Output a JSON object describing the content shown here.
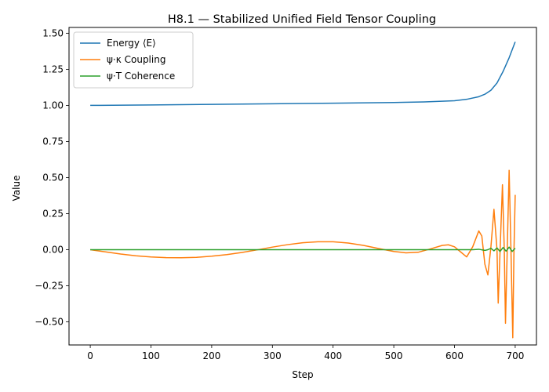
{
  "chart_data": {
    "type": "line",
    "title": "H8.1 — Stabilized Unified Field Tensor Coupling",
    "xlabel": "Step",
    "ylabel": "Value",
    "xlim": [
      -35,
      735
    ],
    "ylim": [
      -0.66,
      1.54
    ],
    "xticks": [
      0,
      100,
      200,
      300,
      400,
      500,
      600,
      700
    ],
    "xtick_labels": [
      "0",
      "100",
      "200",
      "300",
      "400",
      "500",
      "600",
      "700"
    ],
    "yticks": [
      -0.5,
      -0.25,
      0.0,
      0.25,
      0.5,
      0.75,
      1.0,
      1.25,
      1.5
    ],
    "ytick_labels": [
      "−0.50",
      "−0.25",
      "0.00",
      "0.25",
      "0.50",
      "0.75",
      "1.00",
      "1.25",
      "1.50"
    ],
    "grid": false,
    "legend_position": "top-left",
    "series": [
      {
        "name": "Energy ⟨E⟩",
        "color": "#1f77b4",
        "x": [
          0,
          100,
          200,
          300,
          400,
          500,
          550,
          600,
          620,
          640,
          650,
          660,
          670,
          680,
          690,
          700
        ],
        "values": [
          1.0,
          1.003,
          1.007,
          1.011,
          1.015,
          1.02,
          1.024,
          1.032,
          1.042,
          1.06,
          1.077,
          1.105,
          1.155,
          1.235,
          1.33,
          1.44
        ]
      },
      {
        "name": "ψ·κ Coupling",
        "color": "#ff7f0e",
        "x": [
          0,
          25,
          50,
          75,
          100,
          125,
          150,
          175,
          200,
          225,
          250,
          275,
          300,
          325,
          350,
          375,
          400,
          425,
          450,
          475,
          500,
          520,
          540,
          560,
          580,
          590,
          600,
          610,
          620,
          630,
          640,
          645,
          650,
          655,
          660,
          665,
          670,
          672,
          676,
          679,
          682,
          684,
          688,
          690,
          693,
          696,
          698,
          700
        ],
        "values": [
          0.0,
          -0.015,
          -0.03,
          -0.042,
          -0.05,
          -0.055,
          -0.056,
          -0.053,
          -0.045,
          -0.034,
          -0.019,
          -0.001,
          0.018,
          0.035,
          0.048,
          0.055,
          0.055,
          0.046,
          0.03,
          0.008,
          -0.012,
          -0.022,
          -0.018,
          0.005,
          0.03,
          0.034,
          0.02,
          -0.015,
          -0.05,
          0.02,
          0.13,
          0.095,
          -0.1,
          -0.175,
          0.02,
          0.28,
          0.0,
          -0.37,
          0.1,
          0.45,
          0.0,
          -0.51,
          0.2,
          0.55,
          0.0,
          -0.61,
          0.0,
          0.38
        ]
      },
      {
        "name": "ψ·T Coherence",
        "color": "#2ca02c",
        "x": [
          0,
          100,
          200,
          300,
          400,
          500,
          600,
          630,
          640,
          650,
          655,
          660,
          665,
          670,
          675,
          680,
          685,
          690,
          695,
          700
        ],
        "values": [
          0.0,
          0.0,
          0.0,
          0.0,
          0.0,
          0.0,
          0.0,
          0.0,
          0.003,
          -0.005,
          0.0,
          0.01,
          -0.008,
          0.012,
          -0.012,
          0.015,
          -0.01,
          0.018,
          -0.012,
          0.01
        ]
      }
    ]
  }
}
